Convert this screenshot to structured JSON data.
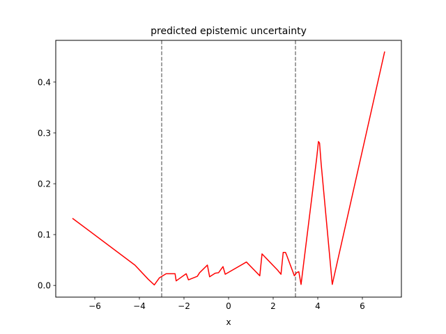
{
  "chart_data": {
    "type": "line",
    "title": "predicted epistemic uncertainty",
    "xlabel": "x",
    "ylabel": "",
    "xlim": [
      -7.75,
      7.75
    ],
    "ylim": [
      -0.023,
      0.482
    ],
    "xticks": [
      -6,
      -4,
      -2,
      0,
      2,
      4,
      6
    ],
    "xtick_labels": [
      "−6",
      "−4",
      "−2",
      "0",
      "2",
      "4",
      "6"
    ],
    "yticks": [
      0.0,
      0.1,
      0.2,
      0.3,
      0.4
    ],
    "ytick_labels": [
      "0.0",
      "0.1",
      "0.2",
      "0.3",
      "0.4"
    ],
    "grid": false,
    "legend": "none",
    "vlines": [
      {
        "x": -3,
        "color": "#808080",
        "style": "dashed"
      },
      {
        "x": 3,
        "color": "#808080",
        "style": "dashed"
      }
    ],
    "series": [
      {
        "color": "#ff0000",
        "x": [
          -7.0,
          -4.2,
          -3.6,
          -3.33,
          -3.1,
          -2.8,
          -2.4,
          -2.35,
          -1.9,
          -1.8,
          -1.4,
          -1.3,
          -0.95,
          -0.85,
          -0.6,
          -0.45,
          -0.25,
          -0.15,
          0.8,
          1.4,
          1.5,
          2.2,
          2.35,
          2.45,
          2.55,
          2.6,
          2.95,
          3.05,
          3.15,
          3.25,
          3.95,
          4.03,
          4.08,
          4.15,
          4.65,
          7.0
        ],
        "y": [
          0.132,
          0.04,
          0.012,
          0.001,
          0.015,
          0.023,
          0.023,
          0.009,
          0.023,
          0.011,
          0.018,
          0.025,
          0.04,
          0.017,
          0.024,
          0.025,
          0.037,
          0.022,
          0.046,
          0.019,
          0.062,
          0.03,
          0.022,
          0.065,
          0.065,
          0.06,
          0.019,
          0.025,
          0.027,
          0.002,
          0.25,
          0.283,
          0.28,
          0.24,
          0.002,
          0.46
        ]
      }
    ]
  }
}
